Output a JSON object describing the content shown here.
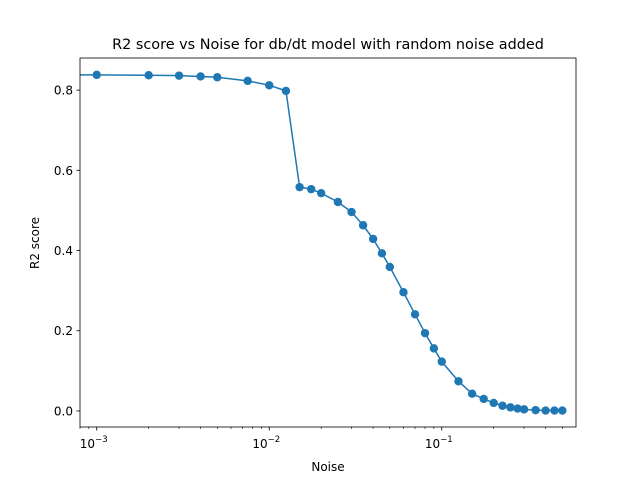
{
  "chart_data": {
    "type": "line",
    "title": "R2 score vs Noise for db/dt model with random noise added",
    "xlabel": "Noise",
    "ylabel": "R2 score",
    "xscale": "log",
    "xlim": [
      0.0008,
      0.6
    ],
    "ylim": [
      -0.04,
      0.88
    ],
    "grid": false,
    "marker": "circle",
    "color": "#1f77b4",
    "x_ticks": [
      {
        "value": 0.001,
        "label": "10",
        "exp": "−3"
      },
      {
        "value": 0.01,
        "label": "10",
        "exp": "−2"
      },
      {
        "value": 0.1,
        "label": "10",
        "exp": "−1"
      }
    ],
    "y_ticks": [
      {
        "value": 0.0,
        "label": "0.0"
      },
      {
        "value": 0.2,
        "label": "0.2"
      },
      {
        "value": 0.4,
        "label": "0.4"
      },
      {
        "value": 0.6,
        "label": "0.6"
      },
      {
        "value": 0.8,
        "label": "0.8"
      }
    ],
    "line_only_start": {
      "x": 0.0008,
      "y": 0.838
    },
    "series": [
      {
        "x": [
          0.001,
          0.002,
          0.003,
          0.004,
          0.005,
          0.0075,
          0.01,
          0.0125,
          0.015,
          0.0175,
          0.02,
          0.025,
          0.03,
          0.035,
          0.04,
          0.045,
          0.05,
          0.06,
          0.07,
          0.08,
          0.09,
          0.1,
          0.125,
          0.15,
          0.175,
          0.2,
          0.225,
          0.25,
          0.275,
          0.3,
          0.35,
          0.4,
          0.45,
          0.5
        ],
        "y": [
          0.838,
          0.837,
          0.836,
          0.834,
          0.832,
          0.823,
          0.812,
          0.798,
          0.558,
          0.553,
          0.543,
          0.521,
          0.496,
          0.463,
          0.429,
          0.393,
          0.359,
          0.296,
          0.241,
          0.194,
          0.156,
          0.123,
          0.074,
          0.043,
          0.03,
          0.02,
          0.013,
          0.009,
          0.006,
          0.004,
          0.002,
          0.001,
          0.001,
          0.001
        ]
      }
    ]
  }
}
